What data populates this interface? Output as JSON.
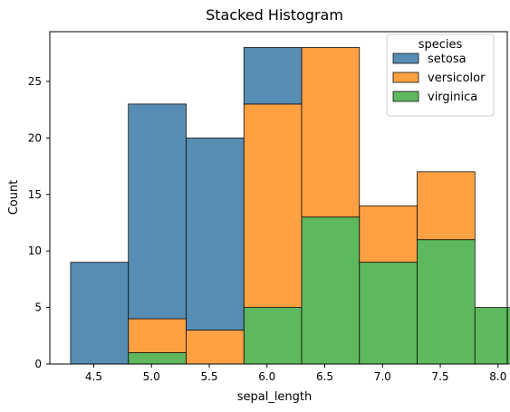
{
  "chart_data": {
    "type": "bar",
    "title": "Stacked Histogram",
    "xlabel": "sepal_length",
    "ylabel": "Count",
    "xlim": [
      4.12,
      8.08
    ],
    "ylim": [
      0,
      29.4
    ],
    "x_ticks": [
      4.5,
      5.0,
      5.5,
      6.0,
      6.5,
      7.0,
      7.5,
      8.0
    ],
    "x_tick_labels": [
      "4.5",
      "5.0",
      "5.5",
      "6.0",
      "6.5",
      "7.0",
      "7.5",
      "8.0"
    ],
    "y_ticks": [
      0,
      5,
      10,
      15,
      20,
      25
    ],
    "y_tick_labels": [
      "0",
      "5",
      "10",
      "15",
      "20",
      "25"
    ],
    "bin_edges": [
      4.3,
      4.8,
      5.3,
      5.8,
      6.3,
      6.8,
      7.3,
      7.8,
      8.3
    ],
    "series": [
      {
        "name": "setosa",
        "color": "#3274a1",
        "values": [
          9,
          19,
          17,
          5,
          0,
          0,
          0,
          0
        ]
      },
      {
        "name": "versicolor",
        "color": "#ff8c1a",
        "values": [
          0,
          3,
          3,
          18,
          15,
          5,
          6,
          0
        ]
      },
      {
        "name": "virginica",
        "color": "#3aa83a",
        "values": [
          0,
          1,
          0,
          5,
          13,
          9,
          11,
          5
        ]
      }
    ],
    "stacked": true,
    "legend": {
      "title": "species",
      "placement": "top-right"
    },
    "grid": false
  }
}
